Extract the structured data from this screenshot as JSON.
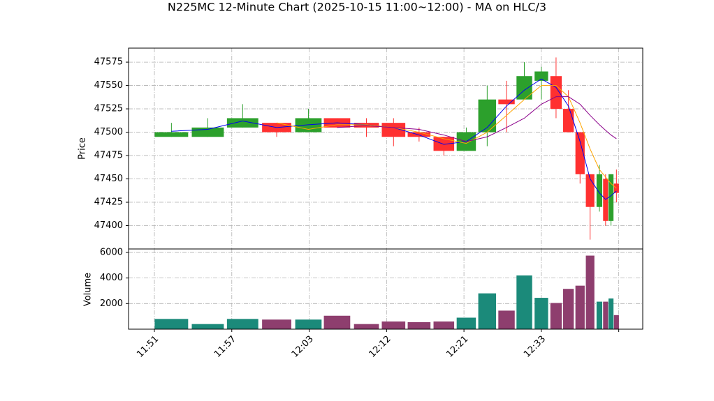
{
  "chart_data": {
    "type": "candlestick",
    "title": "N225MC 12-Minute Chart (2025-10-15 11:00~12:00) - MA on HLC/3",
    "x": [
      0.22,
      0.69,
      1.14,
      1.58,
      1.99,
      2.36,
      2.74,
      3.09,
      3.42,
      3.74,
      4.03,
      4.3,
      4.55,
      4.78,
      5.0,
      5.19,
      5.35,
      5.5,
      5.63,
      5.75,
      5.83,
      5.9,
      5.97
    ],
    "open": [
      47495,
      47495,
      47505,
      47510,
      47500,
      47515,
      47510,
      47510,
      47500,
      47495,
      47480,
      47500,
      47535,
      47535,
      47555,
      47560,
      47525,
      47500,
      47455,
      47420,
      47450,
      47405,
      47445
    ],
    "high": [
      47510,
      47515,
      47530,
      47510,
      47525,
      47515,
      47515,
      47515,
      47505,
      47495,
      47505,
      47550,
      47555,
      47575,
      47570,
      47580,
      47545,
      47500,
      47455,
      47465,
      47455,
      47455,
      47460
    ],
    "low": [
      47495,
      47495,
      47505,
      47495,
      47500,
      47505,
      47495,
      47485,
      47490,
      47475,
      47480,
      47485,
      47500,
      47535,
      47535,
      47515,
      47500,
      47445,
      47385,
      47415,
      47400,
      47400,
      47425
    ],
    "close": [
      47500,
      47505,
      47515,
      47500,
      47515,
      47505,
      47505,
      47495,
      47495,
      47480,
      47500,
      47535,
      47530,
      47560,
      47565,
      47525,
      47500,
      47455,
      47420,
      47455,
      47405,
      47455,
      47435
    ],
    "volume": [
      800,
      400,
      800,
      750,
      750,
      1050,
      400,
      600,
      550,
      600,
      900,
      2800,
      1450,
      4200,
      2450,
      2050,
      3150,
      3400,
      5750,
      2150,
      2150,
      2400,
      1100
    ],
    "up_color": "#2ca02c",
    "down_color": "#ff3030",
    "volume_up_color": "#1b8a7a",
    "volume_down_color": "#8e3e6e",
    "ma": [
      {
        "color": "#0000ee",
        "values": [
          47501,
          47503,
          47512,
          47505,
          47508,
          47510,
          47508,
          47505,
          47497,
          47487,
          47490,
          47505,
          47528,
          47545,
          47557,
          47548,
          47528,
          47490,
          47450,
          47435,
          47428,
          47432,
          47437
        ]
      },
      {
        "color": "#ffa500",
        "values": [
          null,
          null,
          null,
          47510,
          47503,
          47508,
          47508,
          47505,
          47500,
          47493,
          47488,
          47500,
          47518,
          47535,
          47550,
          47550,
          47538,
          47510,
          47482,
          47460,
          47452,
          47445,
          47440
        ]
      },
      {
        "color": "#8b008b",
        "values": [
          null,
          null,
          null,
          null,
          null,
          47505,
          47507,
          47505,
          47503,
          47497,
          47490,
          47495,
          47505,
          47515,
          47530,
          47538,
          47538,
          47530,
          47518,
          47508,
          47502,
          47497,
          47493
        ]
      }
    ],
    "ylabel": "Price",
    "ylim": [
      47375,
      47590
    ],
    "yticks": [
      47400,
      47425,
      47450,
      47475,
      47500,
      47525,
      47550,
      47575
    ],
    "volume_ylabel": "Volume",
    "volume_ylim": [
      0,
      6270
    ],
    "volume_yticks": [
      2000,
      4000,
      6000
    ],
    "xlim": [
      -0.334,
      6.31
    ],
    "xticks": [
      {
        "value": 0,
        "label": "11:51"
      },
      {
        "value": 1,
        "label": "11:57"
      },
      {
        "value": 2,
        "label": "12:03"
      },
      {
        "value": 3,
        "label": "12:12"
      },
      {
        "value": 4,
        "label": "12:21"
      },
      {
        "value": 5,
        "label": "12:33"
      },
      {
        "value": 6,
        "label": null
      }
    ],
    "grid": true
  }
}
